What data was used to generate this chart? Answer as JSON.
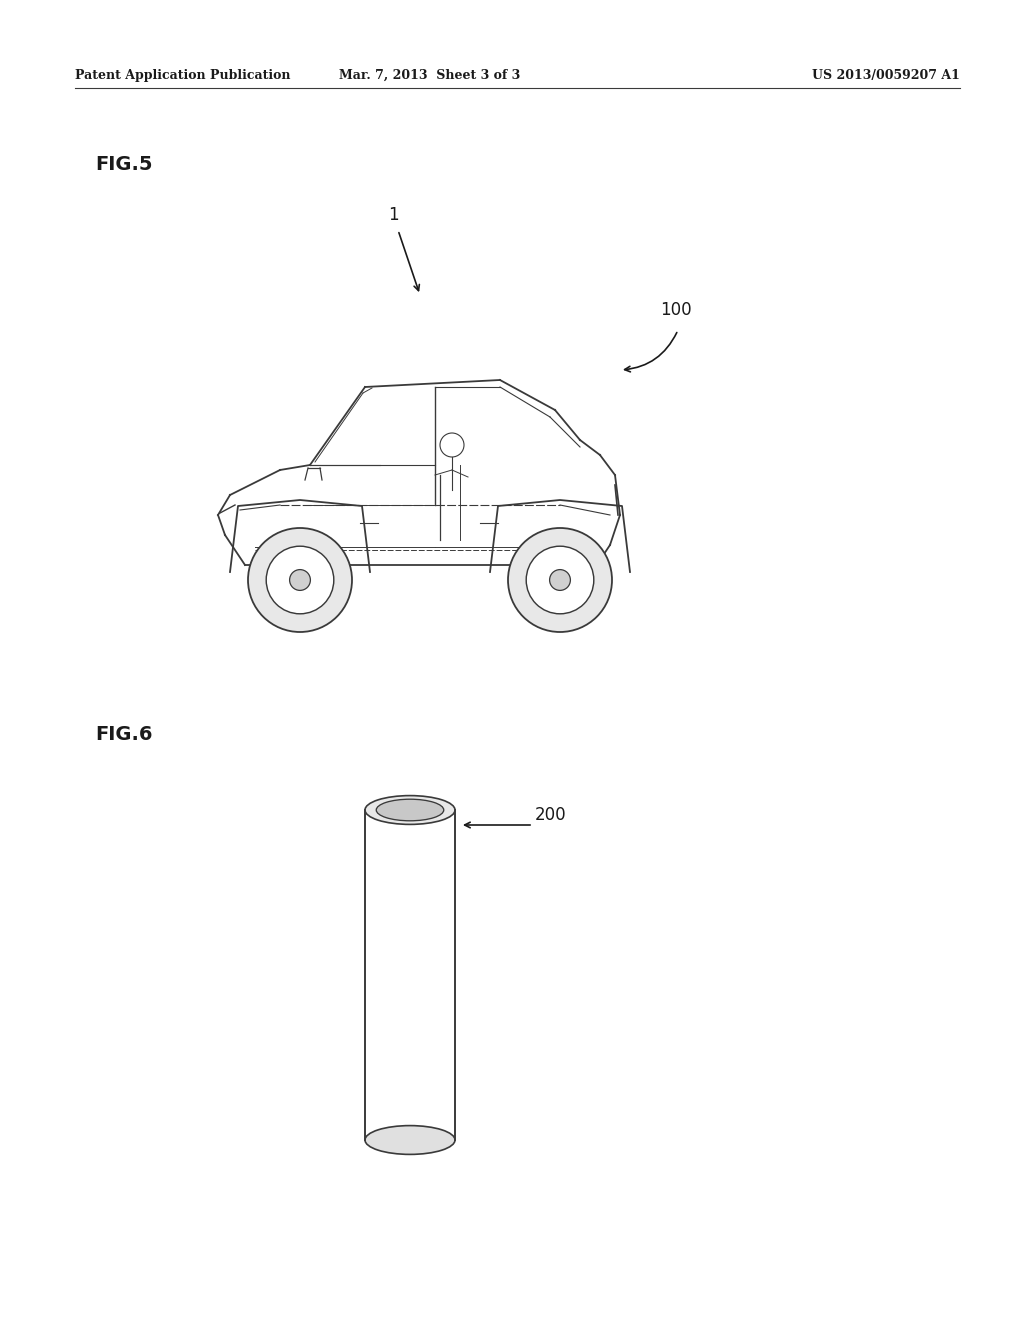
{
  "background_color": "#ffffff",
  "header_left": "Patent Application Publication",
  "header_center": "Mar. 7, 2013  Sheet 3 of 3",
  "header_right": "US 2013/0059207 A1",
  "fig5_label": "FIG.5",
  "fig6_label": "FIG.6",
  "label_1": "1",
  "label_100": "100",
  "label_200": "200",
  "text_color": "#1a1a1a",
  "line_color": "#3a3a3a"
}
